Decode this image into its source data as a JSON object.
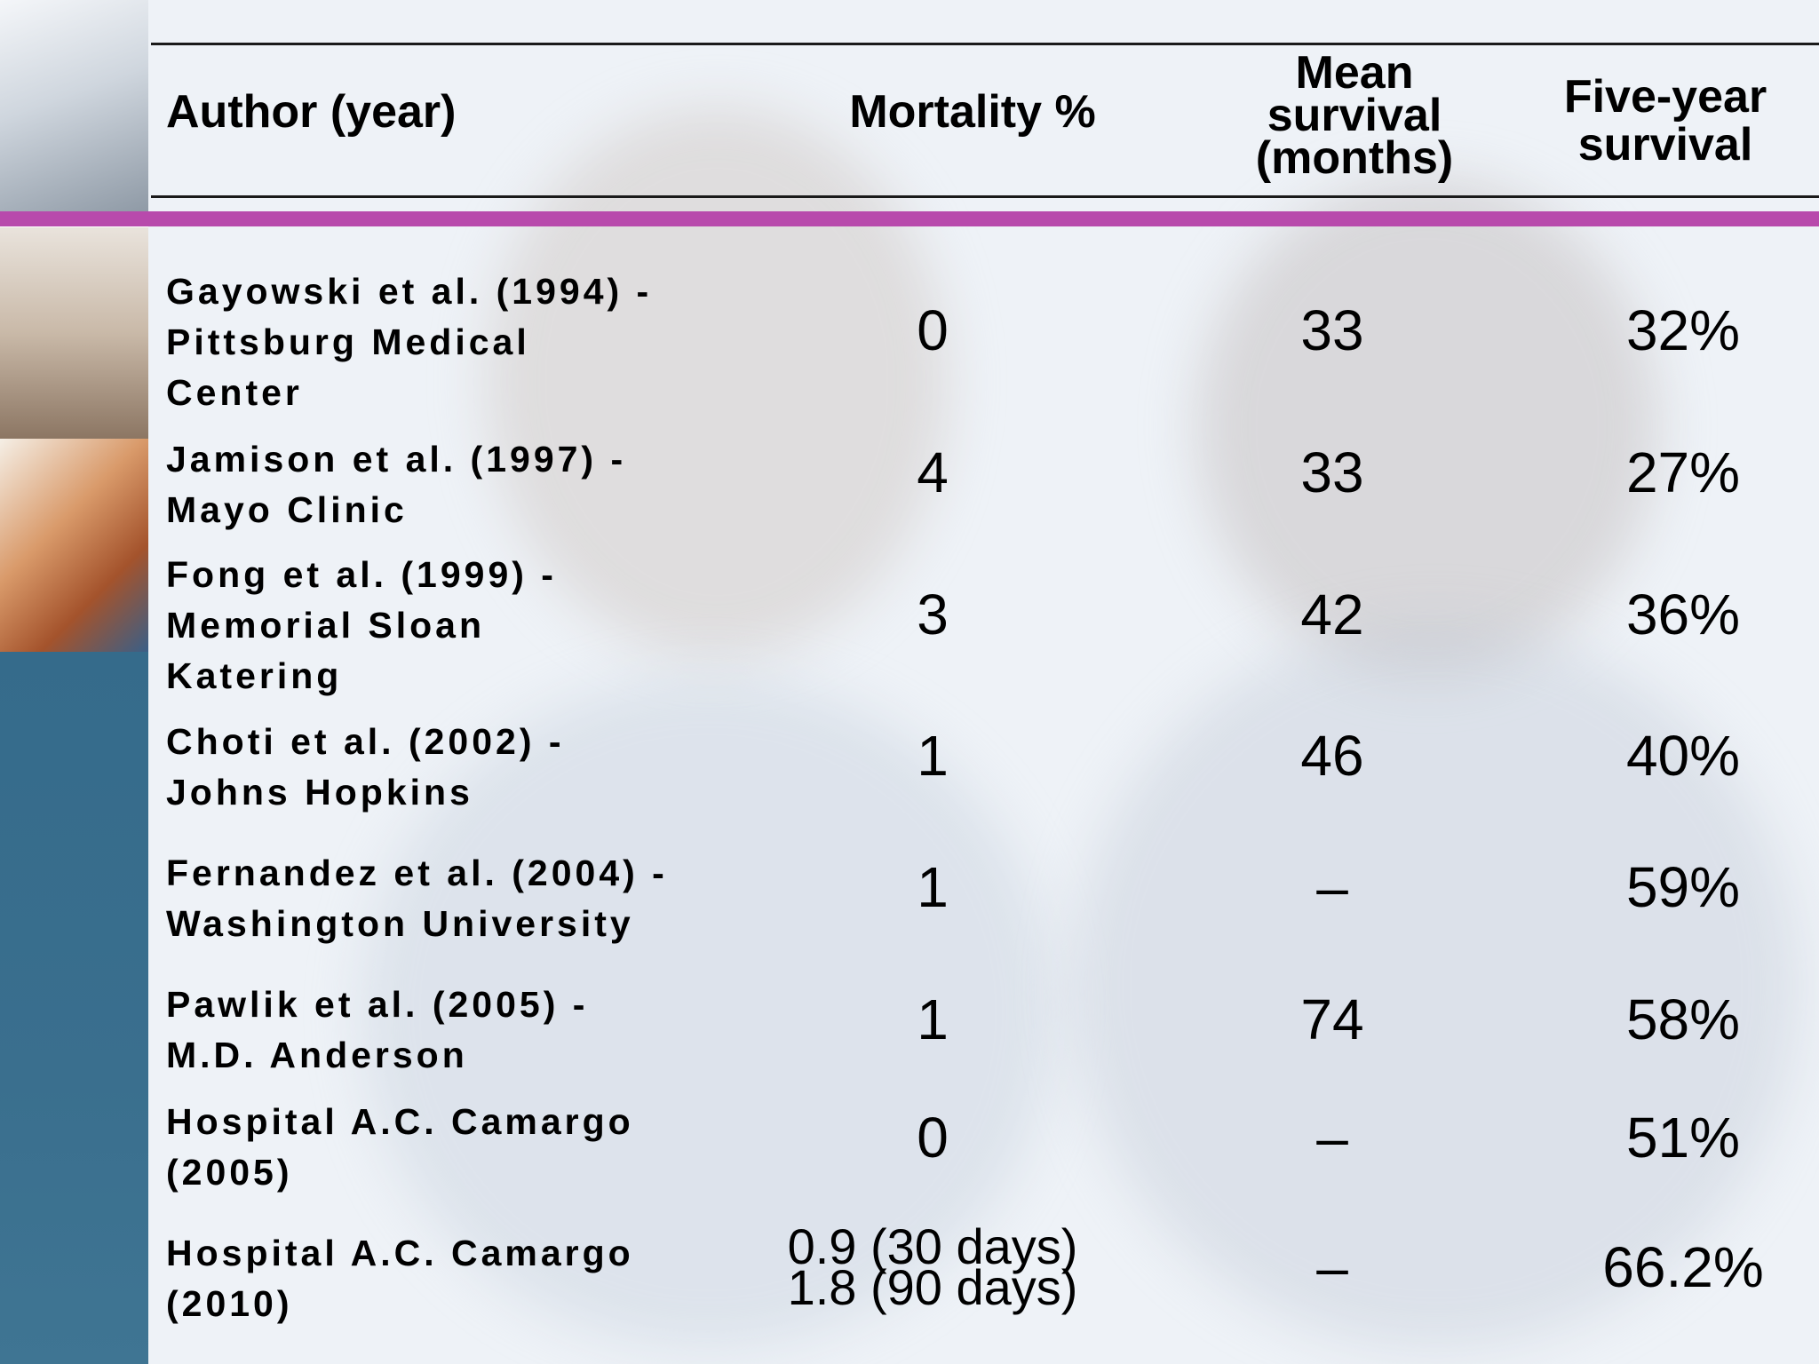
{
  "table": {
    "headers": {
      "author": "Author (year)",
      "mortality": "Mortality %",
      "mean_survival_lines": [
        "Mean",
        "survival",
        "(months)"
      ],
      "five_year_lines": [
        "Five-year",
        "survival"
      ]
    },
    "rows": [
      {
        "author_lines": [
          "Gayowski et al. (1994) -",
          "Pittsburg Medical",
          "Center"
        ],
        "mortality": "0",
        "mean_survival": "33",
        "five_year": "32%"
      },
      {
        "author_lines": [
          "Jamison et al. (1997) -",
          "Mayo Clinic"
        ],
        "mortality": "4",
        "mean_survival": "33",
        "five_year": "27%"
      },
      {
        "author_lines": [
          "Fong et al. (1999) -",
          "Memorial Sloan",
          "Katering"
        ],
        "mortality": "3",
        "mean_survival": "42",
        "five_year": "36%"
      },
      {
        "author_lines": [
          "Choti et al. (2002) -",
          "Johns Hopkins"
        ],
        "mortality": "1",
        "mean_survival": "46",
        "five_year": "40%"
      },
      {
        "author_lines": [
          "Fernandez et al. (2004) -",
          "Washington University"
        ],
        "mortality": "1",
        "mean_survival": "–",
        "five_year": "59%"
      },
      {
        "author_lines": [
          "Pawlik et al. (2005) -",
          "M.D. Anderson"
        ],
        "mortality": "1",
        "mean_survival": "74",
        "five_year": "58%"
      },
      {
        "author_lines": [
          "Hospital A.C. Camargo",
          "(2005)"
        ],
        "mortality": "0",
        "mean_survival": "–",
        "five_year": "51%"
      },
      {
        "author_lines": [
          "Hospital A.C. Camargo",
          "(2010)"
        ],
        "mortality_lines": [
          "0.9 (30 days)",
          "1.8 (90 days)"
        ],
        "mean_survival": "–",
        "five_year": "66.2%"
      }
    ]
  },
  "colors": {
    "accent_bar": "#b84aac",
    "sidebar_teal": "#3a6f8e",
    "background": "#eef2f7"
  }
}
